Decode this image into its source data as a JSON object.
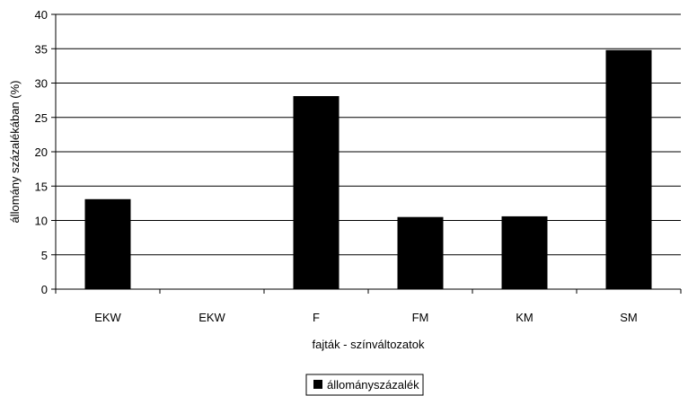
{
  "chart_data": {
    "type": "bar",
    "categories": [
      "EKW",
      "EKW",
      "F",
      "FM",
      "KM",
      "SM"
    ],
    "series": [
      {
        "name": "állományszázalék",
        "values": [
          13.1,
          0,
          28.1,
          10.5,
          10.6,
          34.8
        ],
        "color": "#000000"
      }
    ],
    "xlabel": "fajták - színváltozatok",
    "ylabel": "állomány százalékában (%)",
    "ylim": [
      0,
      40
    ],
    "yticks": [
      0,
      5,
      10,
      15,
      20,
      25,
      30,
      35,
      40
    ],
    "ytick_labels": [
      "0",
      "5",
      "10",
      "15",
      "20",
      "25",
      "30",
      "35",
      "40"
    ],
    "grid": "horizontal",
    "legend_position": "bottom"
  }
}
